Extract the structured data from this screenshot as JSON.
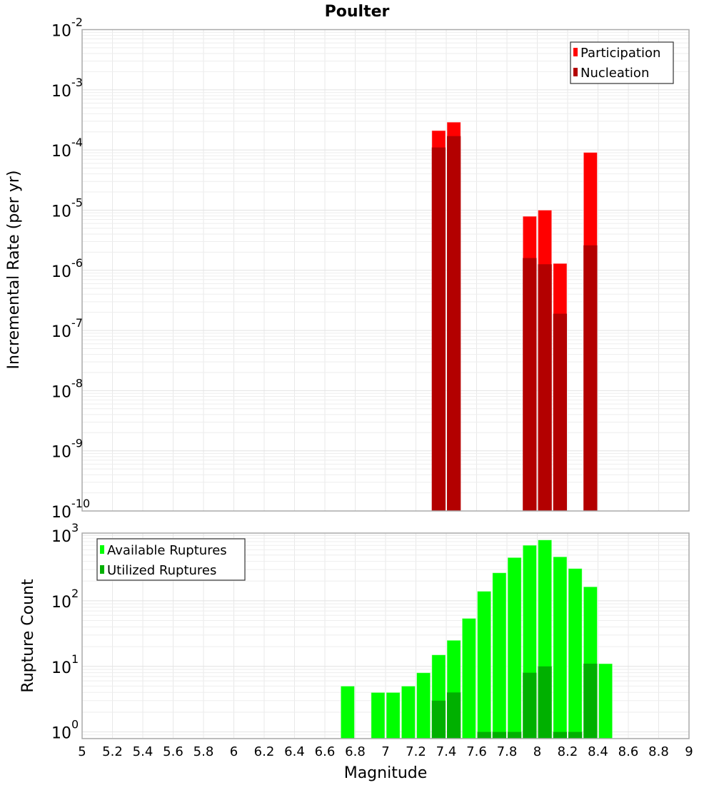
{
  "chart_data": [
    {
      "type": "bar",
      "title": "Poulter",
      "xlabel": "Magnitude",
      "ylabel": "Incremental Rate (per yr)",
      "yscale": "log",
      "ylim": [
        1e-10,
        0.01
      ],
      "xlim": [
        5,
        9
      ],
      "bin_width": 0.1,
      "grid": true,
      "legend_position": "top-right",
      "y_tick_exponents": [
        -2,
        -3,
        -4,
        -5,
        -6,
        -7,
        -8,
        -9,
        -10
      ],
      "x": [
        7.35,
        7.45,
        7.95,
        8.05,
        8.15,
        8.35
      ],
      "series": [
        {
          "name": "Participation",
          "color": "#ff0000",
          "values": [
            0.00021,
            0.00029,
            7.9e-06,
            1e-05,
            1.3e-06,
            9.1e-05
          ]
        },
        {
          "name": "Nucleation",
          "color": "#b30000",
          "values": [
            0.00011,
            0.00017,
            1.6e-06,
            1.26e-06,
            1.9e-07,
            2.6e-06
          ]
        }
      ]
    },
    {
      "type": "bar",
      "xlabel": "Magnitude",
      "ylabel": "Rupture Count",
      "yscale": "log",
      "ylim": [
        0.79,
        1080
      ],
      "xlim": [
        5,
        9
      ],
      "bin_width": 0.1,
      "grid": true,
      "legend_position": "top-left",
      "y_tick_exponents": [
        3,
        2,
        1,
        0
      ],
      "x_ticks": [
        "5",
        "5.2",
        "5.4",
        "5.6",
        "5.8",
        "6",
        "6.2",
        "6.4",
        "6.6",
        "6.8",
        "7",
        "7.2",
        "7.4",
        "7.6",
        "7.8",
        "8",
        "8.2",
        "8.4",
        "8.6",
        "8.8",
        "9"
      ],
      "series": [
        {
          "name": "Available Ruptures",
          "color": "#00ff00",
          "x": [
            6.75,
            6.95,
            7.05,
            7.15,
            7.25,
            7.35,
            7.45,
            7.55,
            7.65,
            7.75,
            7.85,
            7.95,
            8.05,
            8.15,
            8.25,
            8.35,
            8.45
          ],
          "values": [
            5,
            4,
            4,
            5,
            8,
            15,
            25,
            54,
            140,
            268,
            458,
            705,
            850,
            470,
            311,
            164,
            11
          ]
        },
        {
          "name": "Utilized Ruptures",
          "color": "#00b000",
          "x": [
            7.35,
            7.45,
            7.65,
            7.75,
            7.85,
            7.95,
            8.05,
            8.15,
            8.25,
            8.35
          ],
          "values": [
            3,
            4,
            1,
            1,
            1,
            8,
            10,
            1,
            1,
            11
          ]
        }
      ]
    }
  ]
}
